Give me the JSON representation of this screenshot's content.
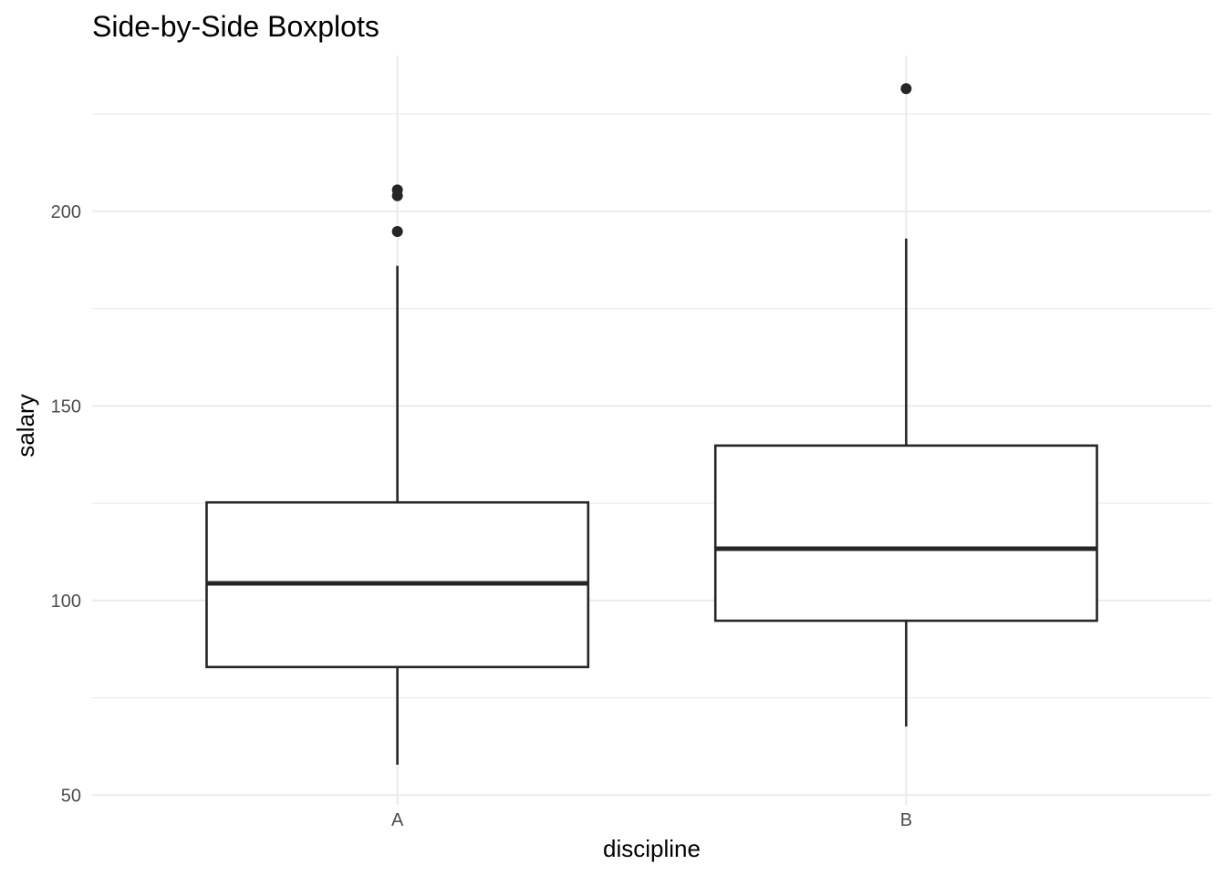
{
  "chart_data": {
    "type": "boxplot",
    "title": "Side-by-Side Boxplots",
    "xlabel": "discipline",
    "ylabel": "salary",
    "categories": [
      "A",
      "B"
    ],
    "boxes": [
      {
        "category": "A",
        "whisker_low": 57.8,
        "q1": 82.9,
        "median": 104.4,
        "q3": 125.2,
        "whisker_high": 186.0,
        "outliers": [
          205.5,
          204.0,
          194.8
        ]
      },
      {
        "category": "B",
        "whisker_low": 67.6,
        "q1": 94.8,
        "median": 113.3,
        "q3": 139.8,
        "whisker_high": 193.0,
        "outliers": [
          231.5
        ]
      }
    ],
    "ylim": [
      47.5,
      240
    ],
    "y_ticks": [
      50,
      100,
      150,
      200
    ],
    "y_tick_labels": [
      "50",
      "100",
      "150",
      "200"
    ],
    "y_minor_ticks": [
      75,
      125,
      175,
      225
    ],
    "grid": true,
    "legend": "none",
    "colors": {
      "box_fill": "#ffffff",
      "box_line": "#262626",
      "grid": "#ebebeb",
      "tick_text": "#4d4d4d"
    }
  }
}
